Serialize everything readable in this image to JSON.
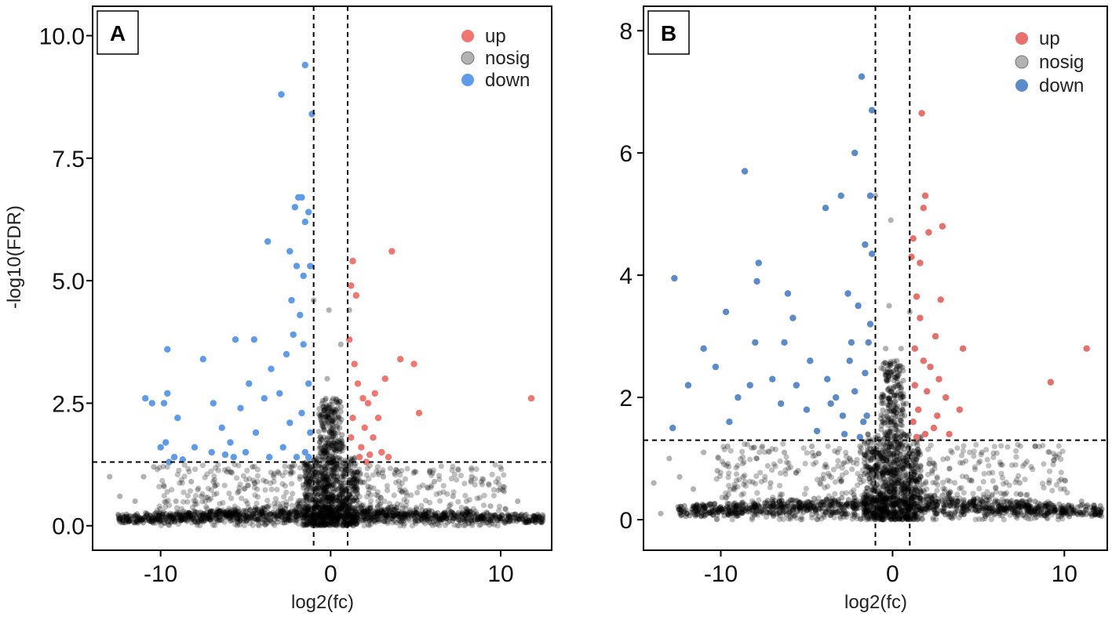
{
  "chart_data": [
    {
      "type": "scatter",
      "panel_label": "A",
      "title": "",
      "xlabel": "log2(fc)",
      "ylabel": "-log10(FDR)",
      "xlim": [
        -14,
        13
      ],
      "ylim": [
        -0.5,
        10.6
      ],
      "xticks": [
        -10,
        0,
        10
      ],
      "yticks": [
        0.0,
        2.5,
        5.0,
        7.5,
        10.0
      ],
      "ytick_labels": [
        "0.0",
        "2.5",
        "5.0",
        "7.5",
        "10.0"
      ],
      "fc_threshold_lines": [
        -1,
        1
      ],
      "fdr_threshold_line": 1.3,
      "grid": false,
      "legend_position": "top-right",
      "colors": {
        "up": "#F0766F",
        "nosig": "#000000",
        "down": "#5E9BEB"
      },
      "series": [
        {
          "name": "up",
          "points": [
            [
              11.8,
              2.6
            ],
            [
              3.6,
              5.6
            ],
            [
              4.9,
              3.3
            ],
            [
              4.1,
              3.4
            ],
            [
              5.2,
              2.3
            ],
            [
              1.3,
              5.4
            ],
            [
              1.2,
              4.9
            ],
            [
              1.5,
              4.7
            ],
            [
              1.1,
              3.8
            ],
            [
              3.2,
              3.0
            ],
            [
              2.6,
              2.7
            ],
            [
              2.2,
              2.5
            ],
            [
              1.6,
              2.9
            ],
            [
              1.4,
              3.3
            ],
            [
              2.0,
              2.0
            ],
            [
              2.5,
              1.8
            ],
            [
              1.8,
              1.6
            ],
            [
              3.0,
              1.5
            ],
            [
              2.8,
              2.2
            ],
            [
              1.3,
              2.2
            ],
            [
              1.7,
              1.4
            ],
            [
              2.3,
              1.45
            ],
            [
              3.4,
              1.4
            ],
            [
              1.2,
              1.8
            ],
            [
              1.9,
              2.6
            ],
            [
              2.1,
              1.3
            ]
          ]
        },
        {
          "name": "down",
          "points": [
            [
              -2.9,
              8.8
            ],
            [
              -1.5,
              9.4
            ],
            [
              -1.1,
              8.4
            ],
            [
              -1.9,
              6.7
            ],
            [
              -1.7,
              6.7
            ],
            [
              -2.1,
              6.5
            ],
            [
              -1.3,
              6.4
            ],
            [
              -1.5,
              6.2
            ],
            [
              -3.7,
              5.8
            ],
            [
              -2.4,
              5.6
            ],
            [
              -2.0,
              5.3
            ],
            [
              -1.6,
              5.1
            ],
            [
              -1.2,
              5.3
            ],
            [
              -9.6,
              3.6
            ],
            [
              -7.5,
              3.4
            ],
            [
              -5.6,
              3.8
            ],
            [
              -4.5,
              3.8
            ],
            [
              -10.9,
              2.6
            ],
            [
              -10.5,
              2.5
            ],
            [
              -9.8,
              2.5
            ],
            [
              -9.6,
              2.7
            ],
            [
              -9.0,
              2.2
            ],
            [
              -10.0,
              1.6
            ],
            [
              -9.7,
              1.7
            ],
            [
              -6.9,
              2.5
            ],
            [
              -6.4,
              2.0
            ],
            [
              -5.9,
              1.7
            ],
            [
              -5.3,
              2.4
            ],
            [
              -4.8,
              2.9
            ],
            [
              -3.9,
              2.6
            ],
            [
              -3.5,
              3.2
            ],
            [
              -3.0,
              2.7
            ],
            [
              -2.6,
              3.5
            ],
            [
              -2.4,
              2.1
            ],
            [
              -2.2,
              3.9
            ],
            [
              -1.8,
              4.3
            ],
            [
              -1.6,
              3.7
            ],
            [
              -1.3,
              2.9
            ],
            [
              -1.2,
              1.9
            ],
            [
              -1.5,
              1.5
            ],
            [
              -2.8,
              1.6
            ],
            [
              -3.6,
              1.4
            ],
            [
              -4.4,
              1.9
            ],
            [
              -5.0,
              1.5
            ],
            [
              -5.7,
              1.4
            ],
            [
              -6.2,
              1.45
            ],
            [
              -7.0,
              1.5
            ],
            [
              -8.0,
              1.6
            ],
            [
              -8.7,
              1.35
            ],
            [
              -9.2,
              1.4
            ],
            [
              -9.5,
              1.3
            ],
            [
              -2.0,
              1.4
            ],
            [
              -1.3,
              1.4
            ],
            [
              -1.7,
              2.3
            ],
            [
              -2.3,
              4.6
            ]
          ]
        },
        {
          "name": "nosig",
          "points": [
            [
              -13.0,
              1.0
            ],
            [
              -12.4,
              0.6
            ],
            [
              -11.5,
              0.5
            ],
            [
              -11.0,
              1.0
            ],
            [
              -10.4,
              1.2
            ],
            [
              -9.8,
              0.8
            ],
            [
              -9.1,
              0.5
            ],
            [
              -8.2,
              0.9
            ],
            [
              -7.6,
              0.6
            ],
            [
              -6.9,
              0.9
            ],
            [
              -6.1,
              1.1
            ],
            [
              -5.4,
              0.7
            ],
            [
              -4.6,
              1.2
            ],
            [
              -3.8,
              0.9
            ],
            [
              -3.1,
              1.1
            ],
            [
              -2.4,
              1.2
            ],
            [
              -1.8,
              1.0
            ],
            [
              -1.3,
              0.9
            ],
            [
              -0.6,
              1.5
            ],
            [
              -0.4,
              2.0
            ],
            [
              -0.2,
              3.0
            ],
            [
              0.3,
              2.2
            ],
            [
              0.6,
              3.7
            ],
            [
              0.8,
              1.6
            ],
            [
              1.4,
              1.1
            ],
            [
              2.2,
              0.8
            ],
            [
              3.1,
              1.0
            ],
            [
              4.2,
              0.7
            ],
            [
              5.0,
              1.1
            ],
            [
              6.1,
              0.9
            ],
            [
              7.2,
              0.6
            ],
            [
              8.3,
              1.0
            ],
            [
              9.4,
              0.4
            ],
            [
              10.2,
              0.7
            ],
            [
              11.0,
              0.5
            ],
            [
              -12.2,
              0.1
            ],
            [
              -10.0,
              0.1
            ],
            [
              -8.0,
              0.12
            ],
            [
              -6.0,
              0.15
            ],
            [
              -4.0,
              0.2
            ],
            [
              -2.0,
              0.3
            ],
            [
              -0.5,
              0.5
            ],
            [
              0.5,
              0.5
            ],
            [
              2.0,
              0.3
            ],
            [
              4.0,
              0.2
            ],
            [
              6.0,
              0.15
            ],
            [
              8.0,
              0.1
            ],
            [
              10.0,
              0.1
            ],
            [
              -0.1,
              4.4
            ],
            [
              -1.0,
              4.6
            ],
            [
              1.1,
              4.4
            ]
          ]
        }
      ]
    },
    {
      "type": "scatter",
      "panel_label": "B",
      "title": "",
      "xlabel": "log2(fc)",
      "ylabel": "",
      "xlim": [
        -14.5,
        12.5
      ],
      "ylim": [
        -0.5,
        8.4
      ],
      "xticks": [
        -10,
        0,
        10
      ],
      "yticks": [
        0,
        2,
        4,
        6,
        8
      ],
      "ytick_labels": [
        "0",
        "2",
        "4",
        "6",
        "8"
      ],
      "fc_threshold_lines": [
        -1,
        1
      ],
      "fdr_threshold_line": 1.3,
      "grid": false,
      "legend_position": "top-right",
      "colors": {
        "up": "#E8706B",
        "nosig": "#000000",
        "down": "#5B8BCC"
      },
      "series": [
        {
          "name": "up",
          "points": [
            [
              11.3,
              2.8
            ],
            [
              9.2,
              2.25
            ],
            [
              1.7,
              6.65
            ],
            [
              1.9,
              5.3
            ],
            [
              2.9,
              4.8
            ],
            [
              2.1,
              4.7
            ],
            [
              1.8,
              5.1
            ],
            [
              1.2,
              4.6
            ],
            [
              1.6,
              4.2
            ],
            [
              1.1,
              4.3
            ],
            [
              4.1,
              2.8
            ],
            [
              3.9,
              1.8
            ],
            [
              1.4,
              3.65
            ],
            [
              2.8,
              3.6
            ],
            [
              2.5,
              3.0
            ],
            [
              1.6,
              3.3
            ],
            [
              1.3,
              2.8
            ],
            [
              2.2,
              2.5
            ],
            [
              2.0,
              2.1
            ],
            [
              3.1,
              2.0
            ],
            [
              1.5,
              1.8
            ],
            [
              1.2,
              1.6
            ],
            [
              2.4,
              1.5
            ],
            [
              3.3,
              1.4
            ],
            [
              1.8,
              2.6
            ],
            [
              2.7,
              2.3
            ],
            [
              1.9,
              1.4
            ],
            [
              2.6,
              1.7
            ],
            [
              1.3,
              2.2
            ],
            [
              1.4,
              1.35
            ]
          ]
        },
        {
          "name": "down",
          "points": [
            [
              -12.7,
              3.95
            ],
            [
              -8.6,
              5.7
            ],
            [
              -3.0,
              5.3
            ],
            [
              -3.9,
              5.1
            ],
            [
              -2.2,
              6.0
            ],
            [
              -1.2,
              6.7
            ],
            [
              -1.8,
              7.25
            ],
            [
              -1.3,
              5.3
            ],
            [
              -1.6,
              4.5
            ],
            [
              -1.2,
              4.35
            ],
            [
              -7.8,
              4.2
            ],
            [
              -7.9,
              3.9
            ],
            [
              -6.1,
              3.7
            ],
            [
              -2.6,
              3.7
            ],
            [
              -2.0,
              3.5
            ],
            [
              -5.8,
              3.3
            ],
            [
              -9.7,
              3.4
            ],
            [
              -11.0,
              2.8
            ],
            [
              -10.3,
              2.5
            ],
            [
              -8.0,
              2.9
            ],
            [
              -6.3,
              2.9
            ],
            [
              -4.8,
              2.6
            ],
            [
              -3.8,
              2.3
            ],
            [
              -3.3,
              2.0
            ],
            [
              -2.9,
              1.7
            ],
            [
              -2.5,
              2.6
            ],
            [
              -2.2,
              2.1
            ],
            [
              -1.6,
              2.4
            ],
            [
              -1.4,
              2.9
            ],
            [
              -1.3,
              3.2
            ],
            [
              -1.7,
              1.6
            ],
            [
              -12.8,
              1.5
            ],
            [
              -11.9,
              2.2
            ],
            [
              -9.5,
              1.6
            ],
            [
              -9.0,
              2.0
            ],
            [
              -8.3,
              2.2
            ],
            [
              -7.0,
              2.3
            ],
            [
              -6.5,
              1.9
            ],
            [
              -5.6,
              2.2
            ],
            [
              -5.0,
              1.8
            ],
            [
              -4.4,
              1.45
            ],
            [
              -3.6,
              1.9
            ],
            [
              -2.8,
              1.4
            ],
            [
              -2.4,
              2.9
            ],
            [
              -1.9,
              1.35
            ],
            [
              -1.5,
              1.7
            ]
          ]
        },
        {
          "name": "nosig",
          "points": [
            [
              -13.9,
              0.6
            ],
            [
              -13.0,
              1.0
            ],
            [
              -12.4,
              0.7
            ],
            [
              -11.6,
              0.5
            ],
            [
              -11.0,
              1.1
            ],
            [
              -10.2,
              0.8
            ],
            [
              -9.6,
              1.2
            ],
            [
              -8.7,
              0.7
            ],
            [
              -7.9,
              1.0
            ],
            [
              -7.1,
              0.6
            ],
            [
              -6.3,
              1.1
            ],
            [
              -5.5,
              0.8
            ],
            [
              -4.7,
              1.2
            ],
            [
              -3.9,
              0.9
            ],
            [
              -3.2,
              1.1
            ],
            [
              -2.5,
              1.0
            ],
            [
              -1.9,
              1.2
            ],
            [
              -1.4,
              1.1
            ],
            [
              -0.6,
              1.6
            ],
            [
              -0.4,
              2.8
            ],
            [
              -0.2,
              3.5
            ],
            [
              0.3,
              2.2
            ],
            [
              0.5,
              2.8
            ],
            [
              0.8,
              1.9
            ],
            [
              1.5,
              1.1
            ],
            [
              2.3,
              0.8
            ],
            [
              3.2,
              1.0
            ],
            [
              4.3,
              0.7
            ],
            [
              5.2,
              1.1
            ],
            [
              6.3,
              0.9
            ],
            [
              7.4,
              0.6
            ],
            [
              8.3,
              1.2
            ],
            [
              9.1,
              0.6
            ],
            [
              10.0,
              0.5
            ],
            [
              11.0,
              0.3
            ],
            [
              -13.5,
              0.1
            ],
            [
              -11.0,
              0.08
            ],
            [
              -9.0,
              0.1
            ],
            [
              -7.0,
              0.12
            ],
            [
              -5.0,
              0.15
            ],
            [
              -3.0,
              0.2
            ],
            [
              -1.5,
              0.4
            ],
            [
              -0.3,
              0.6
            ],
            [
              0.3,
              0.6
            ],
            [
              1.5,
              0.4
            ],
            [
              3.0,
              0.2
            ],
            [
              5.0,
              0.15
            ],
            [
              7.0,
              0.12
            ],
            [
              9.0,
              0.1
            ],
            [
              11.0,
              0.08
            ],
            [
              -0.1,
              4.9
            ],
            [
              -1.0,
              5.3
            ],
            [
              1.0,
              3.4
            ]
          ]
        }
      ]
    }
  ]
}
